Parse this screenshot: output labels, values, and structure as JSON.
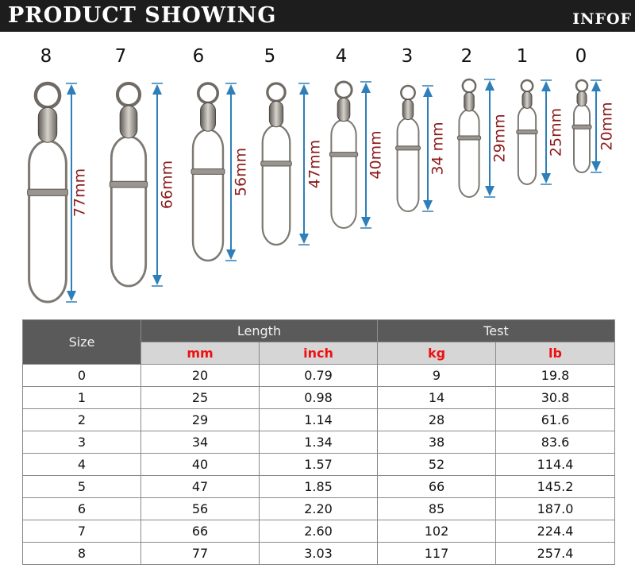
{
  "header": {
    "title": "PRODUCT SHOWING",
    "right_text": "INFOF"
  },
  "illustration": {
    "swivels": [
      {
        "size": "8",
        "length_label": "77mm"
      },
      {
        "size": "7",
        "length_label": "66mm"
      },
      {
        "size": "6",
        "length_label": "56mm"
      },
      {
        "size": "5",
        "length_label": "47mm"
      },
      {
        "size": "4",
        "length_label": "40mm"
      },
      {
        "size": "3",
        "length_label": "34 mm"
      },
      {
        "size": "2",
        "length_label": "29mm"
      },
      {
        "size": "1",
        "length_label": "25mm"
      },
      {
        "size": "0",
        "length_label": "20mm"
      }
    ],
    "colors": {
      "arrow": "#2e7fb9",
      "dimension_text": "#8b1a1a",
      "metal": "#8f8a84"
    }
  },
  "table": {
    "size_header": "Size",
    "length_header": "Length",
    "test_header": "Test",
    "sub_headers": [
      "mm",
      "inch",
      "kg",
      "lb"
    ],
    "rows": [
      [
        "0",
        "20",
        "0.79",
        "9",
        "19.8"
      ],
      [
        "1",
        "25",
        "0.98",
        "14",
        "30.8"
      ],
      [
        "2",
        "29",
        "1.14",
        "28",
        "61.6"
      ],
      [
        "3",
        "34",
        "1.34",
        "38",
        "83.6"
      ],
      [
        "4",
        "40",
        "1.57",
        "52",
        "114.4"
      ],
      [
        "5",
        "47",
        "1.85",
        "66",
        "145.2"
      ],
      [
        "6",
        "56",
        "2.20",
        "85",
        "187.0"
      ],
      [
        "7",
        "66",
        "2.60",
        "102",
        "224.4"
      ],
      [
        "8",
        "77",
        "3.03",
        "117",
        "257.4"
      ]
    ],
    "colors": {
      "header_dark": "#5a5a5a",
      "header_light": "#d6d6d6",
      "unit_text": "#ee1111"
    }
  }
}
